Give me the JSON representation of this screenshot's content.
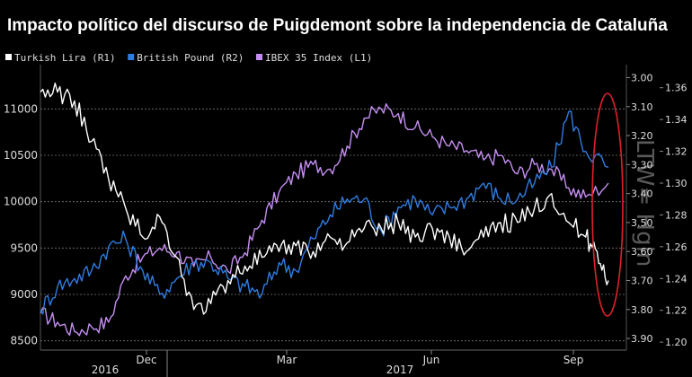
{
  "chart_data": {
    "type": "line",
    "title": "Impacto político del discurso de Puigdemont sobre la independencia de Cataluña",
    "legend": [
      {
        "name": "Turkish Lira (R1)",
        "color": "#ffffff"
      },
      {
        "name": "British Pound (R2)",
        "color": "#2f7ce0"
      },
      {
        "name": "IBEX 35 Index (L1)",
        "color": "#c48ef0"
      }
    ],
    "x_ticks": [
      "Dec",
      "Mar",
      "Jun",
      "Sep"
    ],
    "x_years": [
      "2016",
      "2017"
    ],
    "y_left": {
      "ticks": [
        8500,
        9000,
        9500,
        10000,
        10500,
        11000
      ],
      "labels": [
        "8500",
        "9000",
        "9500",
        "10000",
        "10500",
        "11000"
      ],
      "range": [
        8400,
        11400
      ]
    },
    "y_r1": {
      "ticks": [
        3.0,
        3.1,
        3.2,
        3.3,
        3.4,
        3.5,
        3.6,
        3.7,
        3.8,
        3.9
      ],
      "labels": [
        "3.00",
        "3.10",
        "3.20",
        "3.30",
        "3.40",
        "3.50",
        "3.60",
        "3.70",
        "3.80",
        "3.90"
      ],
      "range": [
        2.98,
        3.94
      ],
      "inverted": true
    },
    "y_r2": {
      "ticks": [
        1.2,
        1.22,
        1.24,
        1.26,
        1.28,
        1.3,
        1.32,
        1.34,
        1.36
      ],
      "labels": [
        "1.20",
        "1.22",
        "1.24",
        "1.26",
        "1.28",
        "1.30",
        "1.32",
        "1.34",
        "1.36"
      ],
      "range": [
        1.195,
        1.37
      ]
    },
    "watermark": "LTW= Hgin",
    "series": [
      {
        "name": "IBEX 35 Index",
        "axis": "left",
        "color": "#c48ef0",
        "x": [
          0,
          0.03,
          0.06,
          0.09,
          0.12,
          0.15,
          0.18,
          0.21,
          0.24,
          0.27,
          0.3,
          0.33,
          0.36,
          0.39,
          0.42,
          0.45,
          0.48,
          0.51,
          0.54,
          0.57,
          0.6,
          0.63,
          0.66,
          0.69,
          0.72,
          0.75,
          0.78,
          0.81,
          0.84,
          0.87,
          0.9,
          0.93,
          0.96,
          1.0
        ],
        "values": [
          8800,
          8700,
          8600,
          8650,
          8700,
          9200,
          9400,
          9500,
          9450,
          9300,
          9400,
          9250,
          9450,
          9800,
          10100,
          10300,
          10400,
          10350,
          10600,
          10900,
          11000,
          10950,
          10800,
          10700,
          10600,
          10550,
          10450,
          10500,
          10300,
          10400,
          10350,
          10150,
          10050,
          10200
        ]
      },
      {
        "name": "British Pound",
        "axis": "r2",
        "color": "#2f7ce0",
        "x": [
          0,
          0.03,
          0.06,
          0.09,
          0.12,
          0.15,
          0.18,
          0.21,
          0.24,
          0.27,
          0.3,
          0.33,
          0.36,
          0.39,
          0.42,
          0.45,
          0.48,
          0.51,
          0.54,
          0.57,
          0.6,
          0.63,
          0.66,
          0.69,
          0.72,
          0.75,
          0.78,
          0.81,
          0.84,
          0.87,
          0.9,
          0.93,
          0.96,
          1.0
        ],
        "values": [
          1.22,
          1.235,
          1.24,
          1.245,
          1.26,
          1.265,
          1.245,
          1.23,
          1.24,
          1.25,
          1.25,
          1.24,
          1.235,
          1.23,
          1.25,
          1.245,
          1.265,
          1.28,
          1.29,
          1.29,
          1.27,
          1.285,
          1.29,
          1.28,
          1.285,
          1.29,
          1.3,
          1.29,
          1.29,
          1.3,
          1.31,
          1.345,
          1.32,
          1.31
        ]
      },
      {
        "name": "Turkish Lira",
        "axis": "r1",
        "color": "#ffffff",
        "x": [
          0,
          0.03,
          0.06,
          0.09,
          0.12,
          0.15,
          0.18,
          0.21,
          0.24,
          0.27,
          0.3,
          0.33,
          0.36,
          0.39,
          0.42,
          0.45,
          0.48,
          0.51,
          0.54,
          0.57,
          0.6,
          0.63,
          0.66,
          0.69,
          0.72,
          0.75,
          0.78,
          0.81,
          0.84,
          0.87,
          0.9,
          0.93,
          0.96,
          0.98,
          1.0
        ],
        "values": [
          3.05,
          3.05,
          3.08,
          3.22,
          3.35,
          3.45,
          3.55,
          3.48,
          3.62,
          3.8,
          3.78,
          3.7,
          3.65,
          3.62,
          3.6,
          3.58,
          3.6,
          3.55,
          3.57,
          3.52,
          3.52,
          3.5,
          3.55,
          3.52,
          3.55,
          3.6,
          3.55,
          3.5,
          3.5,
          3.45,
          3.4,
          3.5,
          3.55,
          3.6,
          3.7
        ]
      }
    ]
  }
}
